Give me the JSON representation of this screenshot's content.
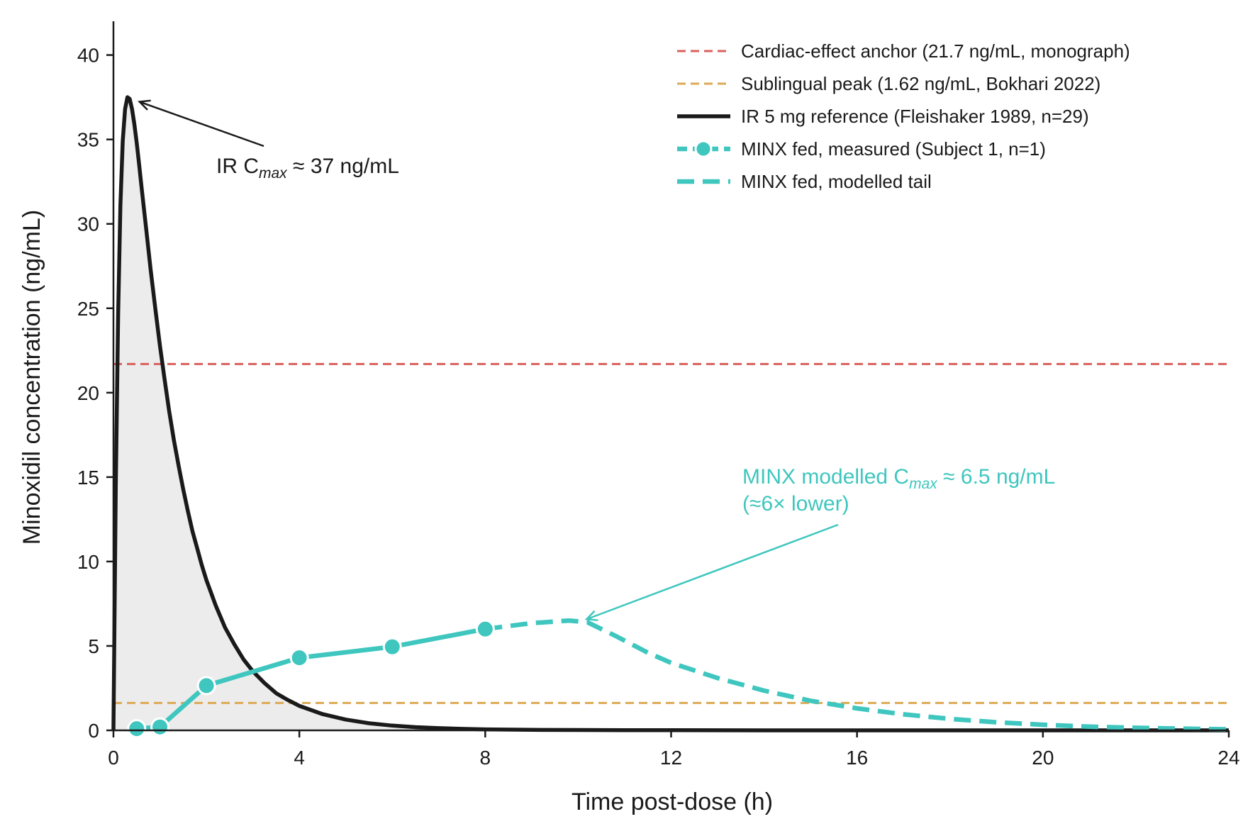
{
  "colors": {
    "cardiac": "#d9605c",
    "sublingual": "#ddaa55",
    "ir": "#1a1a1a",
    "minx": "#3ec6bf",
    "fill": "#ececec",
    "axis": "#1a1a1a"
  },
  "chart_data": {
    "type": "line",
    "xlabel": "Time post-dose (h)",
    "ylabel": "Minoxidil concentration (ng/mL)",
    "xlim": [
      0,
      24
    ],
    "ylim": [
      0,
      42
    ],
    "xticks": [
      0,
      4,
      8,
      12,
      16,
      20,
      24
    ],
    "yticks": [
      0,
      5,
      10,
      15,
      20,
      25,
      30,
      35,
      40
    ],
    "xtick_labels": [
      "0",
      "4",
      "8",
      "12",
      "16",
      "20",
      "24"
    ],
    "ytick_labels": [
      "0",
      "5",
      "10",
      "15",
      "20",
      "25",
      "30",
      "35",
      "40"
    ],
    "grid": false,
    "legend_position": "top-right",
    "reference_lines": [
      {
        "name": "Cardiac-effect anchor (21.7 ng/mL, monograph)",
        "y": 21.7,
        "style": "dashed",
        "color_key": "cardiac"
      },
      {
        "name": "Sublingual peak (1.62 ng/mL, Bokhari 2022)",
        "y": 1.62,
        "style": "dashed",
        "color_key": "sublingual"
      }
    ],
    "series": [
      {
        "name": "IR 5 mg reference (Fleishaker 1989, n=29)",
        "style": "solid",
        "filled": true,
        "x": [
          0,
          0.05,
          0.1,
          0.15,
          0.2,
          0.25,
          0.3,
          0.35,
          0.4,
          0.45,
          0.5,
          0.55,
          0.6,
          0.7,
          0.8,
          0.9,
          1.0,
          1.1,
          1.2,
          1.3,
          1.4,
          1.5,
          1.6,
          1.7,
          1.8,
          1.9,
          2.0,
          2.2,
          2.4,
          2.6,
          2.8,
          3.0,
          3.25,
          3.5,
          3.75,
          4.0,
          4.5,
          5.0,
          5.5,
          6.0,
          6.5,
          7.0,
          7.5,
          8.0,
          9.0,
          10.0,
          11.0,
          12.0,
          14.0,
          16.0,
          18.0,
          20.0,
          22.0,
          24.0
        ],
        "y": [
          0,
          14.5,
          24.6,
          31.1,
          34.9,
          36.8,
          37.5,
          37.4,
          36.8,
          35.9,
          34.8,
          33.6,
          32.3,
          29.8,
          27.3,
          25.0,
          22.8,
          20.8,
          18.9,
          17.2,
          15.7,
          14.3,
          13.0,
          11.8,
          10.8,
          9.8,
          8.9,
          7.4,
          6.1,
          5.1,
          4.2,
          3.5,
          2.8,
          2.2,
          1.8,
          1.45,
          0.96,
          0.64,
          0.42,
          0.28,
          0.19,
          0.13,
          0.09,
          0.06,
          0.03,
          0.02,
          0.01,
          0.01,
          0.0,
          0.0,
          0.0,
          0.0,
          0.0,
          0.0
        ]
      },
      {
        "name": "MINX fed, measured (Subject 1, n=1)",
        "style": "solid-markers",
        "x": [
          0.5,
          1,
          2,
          4,
          6,
          8
        ],
        "y": [
          0.1,
          0.2,
          2.65,
          4.3,
          4.95,
          6.0
        ]
      },
      {
        "name": "MINX fed, modelled tail",
        "style": "dashed",
        "x": [
          8,
          9,
          9.8,
          10.2,
          10.8,
          11.5,
          12,
          13,
          14,
          15,
          16,
          17,
          18,
          19,
          20,
          21,
          22,
          23,
          24
        ],
        "y": [
          6.0,
          6.35,
          6.5,
          6.4,
          5.6,
          4.6,
          4.0,
          3.1,
          2.35,
          1.75,
          1.3,
          0.95,
          0.68,
          0.48,
          0.33,
          0.22,
          0.15,
          0.1,
          0.06
        ]
      }
    ],
    "annotations": [
      {
        "id": "ir",
        "prefix": "IR C",
        "sub": "max",
        "suffix": " ≈ 37 ng/mL",
        "point": [
          0.5,
          37.4
        ]
      },
      {
        "id": "minx",
        "prefix": "MINX modelled C",
        "sub": "max",
        "suffix": " ≈ 6.5 ng/mL",
        "line2": "(≈6× lower)",
        "point": [
          10.0,
          6.5
        ]
      }
    ]
  }
}
